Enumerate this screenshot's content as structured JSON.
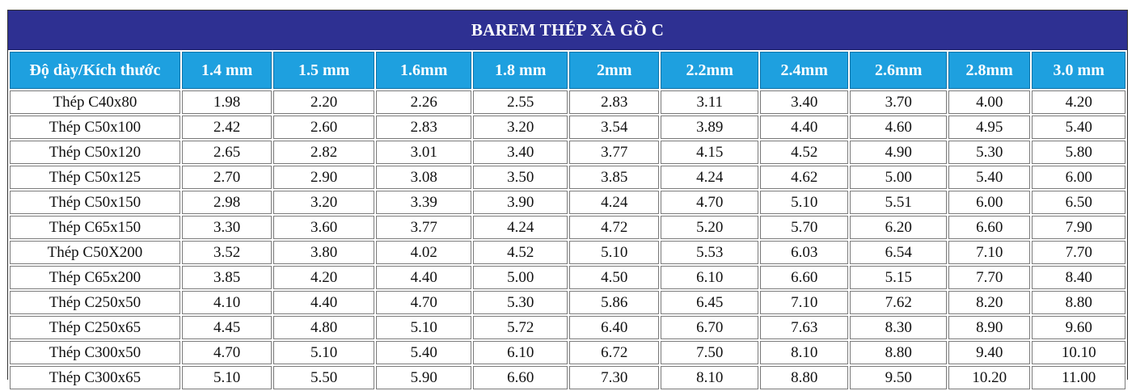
{
  "title": "BAREM THÉP XÀ GỒ C",
  "headers": [
    "Độ dày/Kích thước",
    "1.4 mm",
    "1.5 mm",
    "1.6mm",
    "1.8 mm",
    "2mm",
    "2.2mm",
    "2.4mm",
    "2.6mm",
    "2.8mm",
    "3.0 mm"
  ],
  "rows": [
    [
      "Thép C40x80",
      "1.98",
      "2.20",
      "2.26",
      "2.55",
      "2.83",
      "3.11",
      "3.40",
      "3.70",
      "4.00",
      "4.20"
    ],
    [
      "Thép C50x100",
      "2.42",
      "2.60",
      "2.83",
      "3.20",
      "3.54",
      "3.89",
      "4.40",
      "4.60",
      "4.95",
      "5.40"
    ],
    [
      "Thép C50x120",
      "2.65",
      "2.82",
      "3.01",
      "3.40",
      "3.77",
      "4.15",
      "4.52",
      "4.90",
      "5.30",
      "5.80"
    ],
    [
      "Thép C50x125",
      "2.70",
      "2.90",
      "3.08",
      "3.50",
      "3.85",
      "4.24",
      "4.62",
      "5.00",
      "5.40",
      "6.00"
    ],
    [
      "Thép C50x150",
      "2.98",
      "3.20",
      "3.39",
      "3.90",
      "4.24",
      "4.70",
      "5.10",
      "5.51",
      "6.00",
      "6.50"
    ],
    [
      "Thép C65x150",
      "3.30",
      "3.60",
      "3.77",
      "4.24",
      "4.72",
      "5.20",
      "5.70",
      "6.20",
      "6.60",
      "7.90"
    ],
    [
      "Thép C50X200",
      "3.52",
      "3.80",
      "4.02",
      "4.52",
      "5.10",
      "5.53",
      "6.03",
      "6.54",
      "7.10",
      "7.70"
    ],
    [
      "Thép C65x200",
      "3.85",
      "4.20",
      "4.40",
      "5.00",
      "4.50",
      "6.10",
      "6.60",
      "5.15",
      "7.70",
      "8.40"
    ],
    [
      "Thép C250x50",
      "4.10",
      "4.40",
      "4.70",
      "5.30",
      "5.86",
      "6.45",
      "7.10",
      "7.62",
      "8.20",
      "8.80"
    ],
    [
      "Thép C250x65",
      "4.45",
      "4.80",
      "5.10",
      "5.72",
      "6.40",
      "6.70",
      "7.63",
      "8.30",
      "8.90",
      "9.60"
    ],
    [
      "Thép C300x50",
      "4.70",
      "5.10",
      "5.40",
      "6.10",
      "6.72",
      "7.50",
      "8.10",
      "8.80",
      "9.40",
      "10.10"
    ],
    [
      "Thép C300x65",
      "5.10",
      "5.50",
      "5.90",
      "6.60",
      "7.30",
      "8.10",
      "8.80",
      "9.50",
      "10.20",
      "11.00"
    ]
  ],
  "colors": {
    "title_bg": "#2e3092",
    "header_bg": "#1ea0df",
    "text": "#111111"
  }
}
